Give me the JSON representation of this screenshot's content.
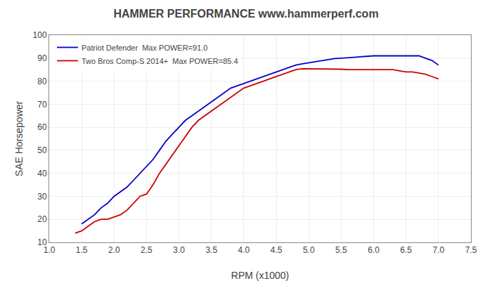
{
  "chart_data": {
    "type": "line",
    "title": "HAMMER PERFORMANCE www.hammerperf.com",
    "xlabel": "RPM (x1000)",
    "ylabel": "SAE Horsepower",
    "xlim": [
      1.0,
      7.5
    ],
    "ylim": [
      10,
      100
    ],
    "xticks": [
      {
        "value": 1.0,
        "label": "1.0"
      },
      1.5,
      {
        "value": 2.0,
        "label": "2.0"
      },
      2.5,
      {
        "value": 3.0,
        "label": "3.0"
      },
      3.5,
      {
        "value": 4.0,
        "label": "4.0"
      },
      4.5,
      {
        "value": 5.0,
        "label": "5.0"
      },
      5.5,
      {
        "value": 6.0,
        "label": "6.0"
      },
      6.5,
      {
        "value": 7.0,
        "label": "7.0"
      },
      7.5
    ],
    "yticks": [
      10,
      20,
      30,
      40,
      50,
      60,
      70,
      80,
      90,
      100
    ],
    "grid": true,
    "legend": "upper left",
    "series": [
      {
        "name": "Patriot Defender  Max POWER=91.0",
        "color": "#0000cc",
        "x": [
          1.5,
          1.6,
          1.7,
          1.8,
          1.9,
          2.0,
          2.1,
          2.2,
          2.3,
          2.4,
          2.5,
          2.6,
          2.7,
          2.8,
          2.9,
          3.0,
          3.1,
          3.2,
          3.3,
          3.4,
          3.5,
          3.6,
          3.7,
          3.8,
          3.9,
          4.0,
          4.1,
          4.2,
          4.3,
          4.4,
          4.5,
          4.6,
          4.7,
          4.8,
          4.9,
          5.0,
          5.1,
          5.2,
          5.3,
          5.4,
          5.5,
          5.6,
          5.7,
          5.8,
          5.9,
          6.0,
          6.1,
          6.2,
          6.3,
          6.4,
          6.5,
          6.6,
          6.7,
          6.8,
          6.9,
          7.0
        ],
        "values": [
          18,
          20,
          22,
          25,
          27,
          30,
          32,
          34,
          37,
          40,
          43,
          46,
          50,
          54,
          57,
          60,
          63,
          65,
          67,
          69,
          71,
          73,
          75,
          77,
          78,
          79,
          80,
          81,
          82,
          83,
          84,
          85,
          86,
          87,
          87.5,
          88,
          88.5,
          89,
          89.5,
          89.8,
          90,
          90.2,
          90.5,
          90.8,
          91,
          91,
          91,
          91,
          91,
          91,
          91,
          91,
          91,
          90,
          89,
          87
        ]
      },
      {
        "name": "Two Bros Comp-S 2014+  Max POWER=85.4",
        "color": "#cc0000",
        "x": [
          1.4,
          1.5,
          1.6,
          1.7,
          1.8,
          1.9,
          2.0,
          2.1,
          2.2,
          2.3,
          2.4,
          2.5,
          2.6,
          2.7,
          2.8,
          2.9,
          3.0,
          3.1,
          3.2,
          3.3,
          3.4,
          3.5,
          3.6,
          3.7,
          3.8,
          3.9,
          4.0,
          4.1,
          4.2,
          4.3,
          4.4,
          4.5,
          4.6,
          4.7,
          4.8,
          4.9,
          5.0,
          5.1,
          5.2,
          5.3,
          5.4,
          5.5,
          5.6,
          5.7,
          5.8,
          5.9,
          6.0,
          6.1,
          6.2,
          6.3,
          6.4,
          6.5,
          6.6,
          6.7,
          6.8,
          6.9,
          7.0
        ],
        "values": [
          14,
          15,
          17,
          19,
          20,
          20,
          21,
          22,
          24,
          27,
          30,
          31,
          35,
          40,
          44,
          48,
          52,
          56,
          60,
          63,
          65,
          67,
          69,
          71,
          73,
          75,
          77,
          78,
          79,
          80,
          81,
          82,
          83,
          84,
          85,
          85.4,
          85.4,
          85.4,
          85.4,
          85.4,
          85.4,
          85.2,
          85,
          85,
          85,
          85,
          85,
          85,
          85,
          85,
          84.5,
          84,
          84,
          83.5,
          83,
          82,
          81
        ]
      }
    ]
  }
}
